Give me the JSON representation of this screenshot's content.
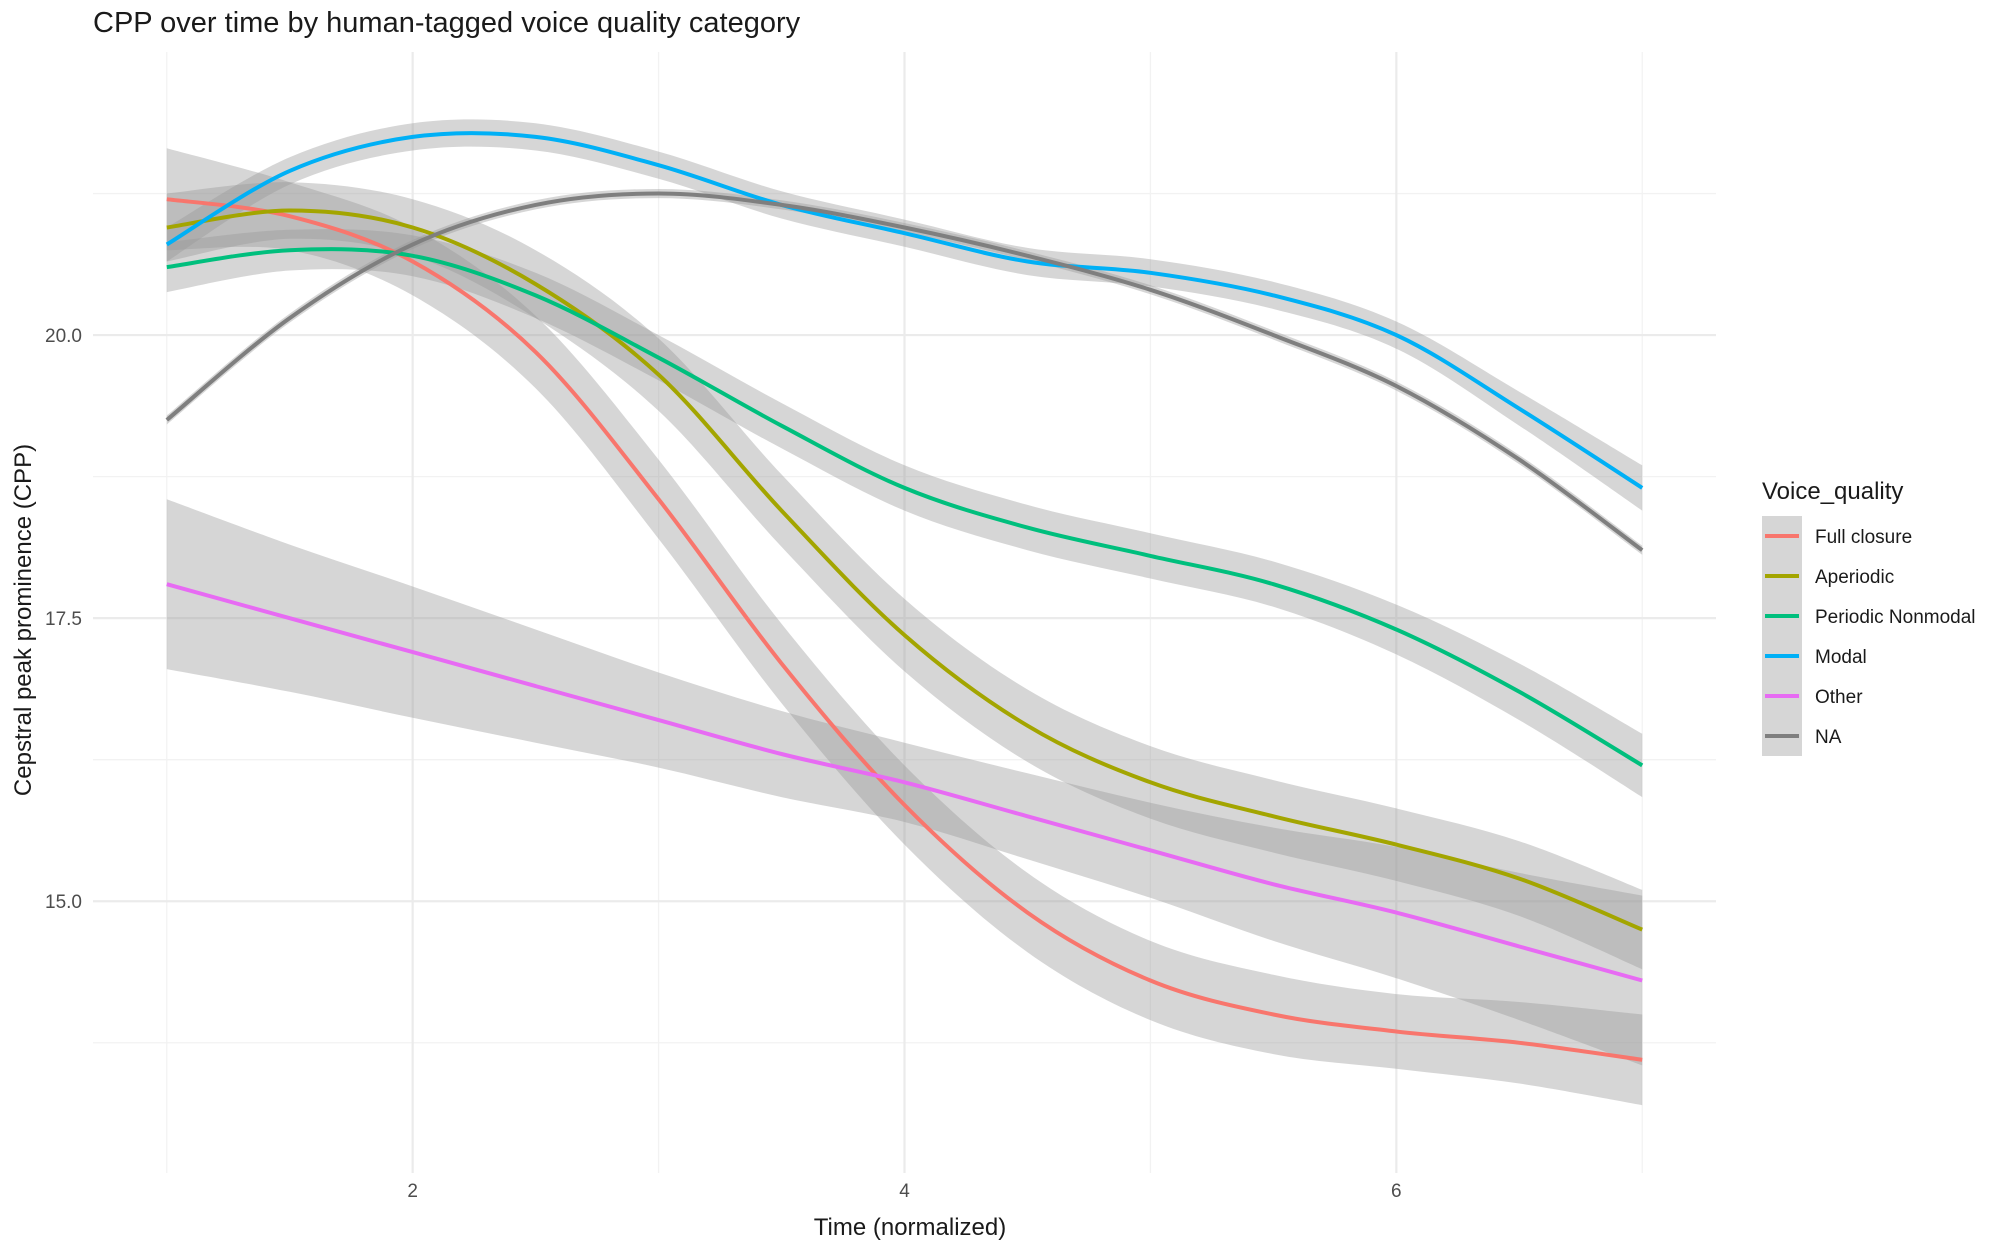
{
  "chart_data": {
    "type": "line",
    "title": "CPP over time by human-tagged voice quality category",
    "xlabel": "Time (normalized)",
    "ylabel": "Cepstral peak prominence (CPP)",
    "xlim": [
      0.7,
      7.3
    ],
    "ylim": [
      12.6,
      22.5
    ],
    "xticks": [
      2,
      4,
      6
    ],
    "yticks": [
      15.0,
      17.5,
      20.0
    ],
    "ytick_labels": [
      "15.0",
      "17.5",
      "20.0"
    ],
    "minor_x": [
      1,
      3,
      5,
      7
    ],
    "minor_y": [
      13.75,
      16.25,
      18.75,
      21.25
    ],
    "grid": true,
    "legend": {
      "title": "Voice_quality",
      "position": "right"
    },
    "series": [
      {
        "name": "Full closure",
        "color": "#F8766D",
        "x": [
          1,
          1.5,
          2,
          2.5,
          3,
          3.5,
          4,
          4.5,
          5,
          5.5,
          6,
          6.5,
          7
        ],
        "y": [
          21.2,
          21.05,
          20.65,
          19.85,
          18.55,
          17.1,
          15.85,
          14.9,
          14.3,
          14.0,
          13.85,
          13.75,
          13.6
        ],
        "ci": [
          0.45,
          0.3,
          0.3,
          0.32,
          0.35,
          0.35,
          0.35,
          0.35,
          0.35,
          0.35,
          0.33,
          0.36,
          0.4
        ]
      },
      {
        "name": "Aperiodic",
        "color": "#A3A500",
        "x": [
          1,
          1.5,
          2,
          2.5,
          3,
          3.5,
          4,
          4.5,
          5,
          5.5,
          6,
          6.5,
          7
        ],
        "y": [
          20.95,
          21.1,
          20.95,
          20.45,
          19.65,
          18.45,
          17.35,
          16.55,
          16.05,
          15.75,
          15.5,
          15.2,
          14.75
        ],
        "ci": [
          0.3,
          0.25,
          0.25,
          0.3,
          0.32,
          0.32,
          0.32,
          0.32,
          0.32,
          0.32,
          0.32,
          0.33,
          0.35
        ]
      },
      {
        "name": "Periodic Nonmodal",
        "color": "#00BF7D",
        "x": [
          1,
          1.5,
          2,
          2.5,
          3,
          3.5,
          4,
          4.5,
          5,
          5.5,
          6,
          6.5,
          7
        ],
        "y": [
          20.6,
          20.75,
          20.7,
          20.35,
          19.8,
          19.2,
          18.65,
          18.3,
          18.05,
          17.8,
          17.4,
          16.85,
          16.2
        ],
        "ci": [
          0.22,
          0.18,
          0.18,
          0.2,
          0.2,
          0.2,
          0.2,
          0.2,
          0.2,
          0.2,
          0.22,
          0.25,
          0.28
        ]
      },
      {
        "name": "Modal",
        "color": "#00B0F6",
        "x": [
          1,
          1.5,
          2,
          2.5,
          3,
          3.5,
          4,
          4.5,
          5,
          5.5,
          6,
          6.5,
          7
        ],
        "y": [
          20.8,
          21.45,
          21.75,
          21.75,
          21.5,
          21.15,
          20.9,
          20.65,
          20.55,
          20.35,
          20.0,
          19.35,
          18.65
        ],
        "ci": [
          0.15,
          0.12,
          0.12,
          0.12,
          0.12,
          0.12,
          0.12,
          0.12,
          0.12,
          0.12,
          0.12,
          0.15,
          0.2
        ]
      },
      {
        "name": "Other",
        "color": "#E76BF3",
        "x": [
          1,
          1.5,
          2,
          2.5,
          3,
          3.5,
          4,
          4.5,
          5,
          5.5,
          6,
          6.5,
          7
        ],
        "y": [
          17.8,
          17.5,
          17.2,
          16.9,
          16.6,
          16.3,
          16.05,
          15.75,
          15.45,
          15.15,
          14.9,
          14.6,
          14.3
        ],
        "ci": [
          0.75,
          0.65,
          0.58,
          0.5,
          0.42,
          0.38,
          0.35,
          0.38,
          0.42,
          0.5,
          0.58,
          0.65,
          0.75
        ]
      },
      {
        "name": "NA",
        "color": "#7F7F7F",
        "x": [
          1,
          1.5,
          2,
          2.5,
          3,
          3.5,
          4,
          4.5,
          5,
          5.5,
          6,
          6.5,
          7
        ],
        "y": [
          19.25,
          20.15,
          20.8,
          21.15,
          21.25,
          21.15,
          20.95,
          20.7,
          20.4,
          20.0,
          19.55,
          18.9,
          18.1
        ],
        "ci": [
          0.04,
          0.04,
          0.04,
          0.04,
          0.04,
          0.04,
          0.04,
          0.04,
          0.04,
          0.04,
          0.04,
          0.04,
          0.04
        ]
      }
    ]
  }
}
